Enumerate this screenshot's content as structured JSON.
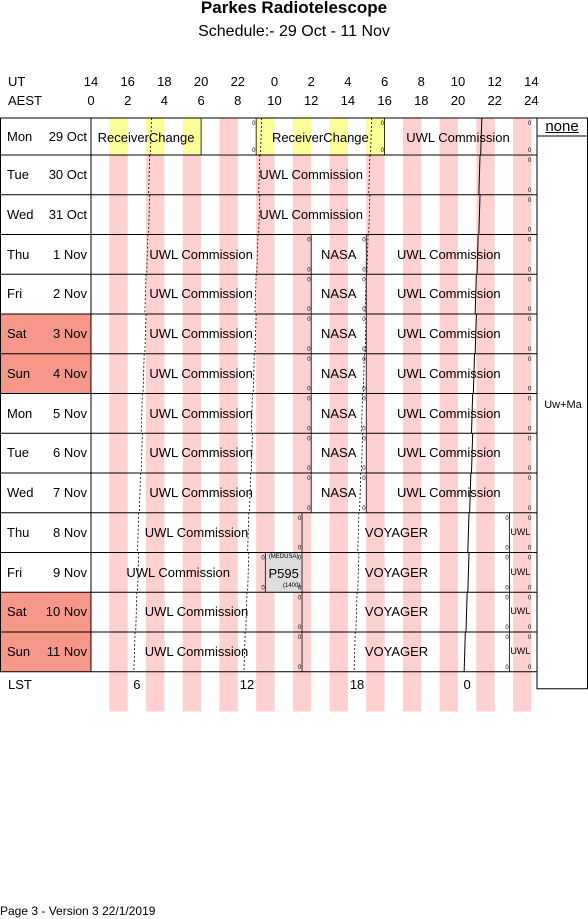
{
  "title": "Parkes Radiotelescope",
  "subtitle": "Schedule:- 29 Oct - 11 Nov",
  "header": {
    "ut_label": "UT",
    "aest_label": "AEST",
    "ut_ticks": [
      "14",
      "16",
      "18",
      "20",
      "22",
      "0",
      "2",
      "4",
      "6",
      "8",
      "10",
      "12",
      "14"
    ],
    "aest_ticks": [
      "0",
      "2",
      "4",
      "6",
      "8",
      "10",
      "12",
      "14",
      "16",
      "18",
      "20",
      "22",
      "24"
    ]
  },
  "lst": {
    "label": "LST",
    "ticks": [
      {
        "label": "6",
        "hour": 2.5
      },
      {
        "label": "12",
        "hour": 8.5
      },
      {
        "label": "18",
        "hour": 14.5
      },
      {
        "label": "0",
        "hour": 20.5
      }
    ]
  },
  "right_column": {
    "top": "none",
    "middle": "Uw+Ma"
  },
  "colors": {
    "weekend": "#f6978a",
    "shade": "#ffd0d0",
    "receiver": "#ffff99",
    "grey": "#dddddd"
  },
  "rows": [
    {
      "day": "Mon",
      "date": "29 Oct",
      "weekend": false,
      "lst_zero": 21.3,
      "blocks": [
        {
          "start": 0,
          "end": 6,
          "text": "ReceiverChange",
          "style": "receiver"
        },
        {
          "start": 9,
          "end": 16,
          "text": "ReceiverChange",
          "style": "receiver"
        },
        {
          "start": 16,
          "end": 24,
          "text": "UWL Commission"
        }
      ]
    },
    {
      "day": "Tue",
      "date": "30 Oct",
      "weekend": false,
      "lst_zero": 21.2,
      "blocks": [
        {
          "start": 0,
          "end": 24,
          "text": "UWL Commission"
        }
      ]
    },
    {
      "day": "Wed",
      "date": "31 Oct",
      "weekend": false,
      "lst_zero": 21.2,
      "blocks": [
        {
          "start": 0,
          "end": 24,
          "text": "UWL Commission"
        }
      ]
    },
    {
      "day": "Thu",
      "date": "1 Nov",
      "weekend": false,
      "lst_zero": 21.1,
      "blocks": [
        {
          "start": 0,
          "end": 12,
          "text": "UWL Commission"
        },
        {
          "start": 12,
          "end": 15,
          "text": "NASA"
        },
        {
          "start": 15,
          "end": 24,
          "text": "UWL Commission"
        }
      ]
    },
    {
      "day": "Fri",
      "date": "2 Nov",
      "weekend": false,
      "lst_zero": 21.0,
      "blocks": [
        {
          "start": 0,
          "end": 12,
          "text": "UWL Commission"
        },
        {
          "start": 12,
          "end": 15,
          "text": "NASA"
        },
        {
          "start": 15,
          "end": 24,
          "text": "UWL Commission"
        }
      ]
    },
    {
      "day": "Sat",
      "date": "3 Nov",
      "weekend": true,
      "lst_zero": 21.0,
      "blocks": [
        {
          "start": 0,
          "end": 12,
          "text": "UWL Commission"
        },
        {
          "start": 12,
          "end": 15,
          "text": "NASA"
        },
        {
          "start": 15,
          "end": 24,
          "text": "UWL Commission"
        }
      ]
    },
    {
      "day": "Sun",
      "date": "4 Nov",
      "weekend": true,
      "lst_zero": 20.9,
      "blocks": [
        {
          "start": 0,
          "end": 12,
          "text": "UWL Commission"
        },
        {
          "start": 12,
          "end": 15,
          "text": "NASA"
        },
        {
          "start": 15,
          "end": 24,
          "text": "UWL Commission"
        }
      ]
    },
    {
      "day": "Mon",
      "date": "5 Nov",
      "weekend": false,
      "lst_zero": 20.8,
      "blocks": [
        {
          "start": 0,
          "end": 12,
          "text": "UWL Commission"
        },
        {
          "start": 12,
          "end": 15,
          "text": "NASA"
        },
        {
          "start": 15,
          "end": 24,
          "text": "UWL Commission"
        }
      ]
    },
    {
      "day": "Tue",
      "date": "6 Nov",
      "weekend": false,
      "lst_zero": 20.8,
      "blocks": [
        {
          "start": 0,
          "end": 12,
          "text": "UWL Commission"
        },
        {
          "start": 12,
          "end": 15,
          "text": "NASA"
        },
        {
          "start": 15,
          "end": 24,
          "text": "UWL Commission"
        }
      ]
    },
    {
      "day": "Wed",
      "date": "7 Nov",
      "weekend": false,
      "lst_zero": 20.7,
      "blocks": [
        {
          "start": 0,
          "end": 12,
          "text": "UWL Commission"
        },
        {
          "start": 12,
          "end": 15,
          "text": "NASA"
        },
        {
          "start": 15,
          "end": 24,
          "text": "UWL Commission"
        }
      ]
    },
    {
      "day": "Thu",
      "date": "8 Nov",
      "weekend": false,
      "lst_zero": 20.6,
      "blocks": [
        {
          "start": 0,
          "end": 11.5,
          "text": "UWL Commission"
        },
        {
          "start": 11.5,
          "end": 21.8,
          "text": "VOYAGER"
        },
        {
          "start": 22.8,
          "end": 24,
          "text": "UWL",
          "size": "small"
        }
      ]
    },
    {
      "day": "Fri",
      "date": "9 Nov",
      "weekend": false,
      "lst_zero": 20.6,
      "blocks": [
        {
          "start": 0,
          "end": 9.5,
          "text": "UWL Commission"
        },
        {
          "start": 9.5,
          "end": 11.5,
          "text": "P595",
          "style": "grey",
          "top": "(MEDUSA)",
          "bottom": "(1400)"
        },
        {
          "start": 11.5,
          "end": 21.8,
          "text": "VOYAGER"
        },
        {
          "start": 22.8,
          "end": 24,
          "text": "UWL",
          "size": "small"
        }
      ]
    },
    {
      "day": "Sat",
      "date": "10 Nov",
      "weekend": true,
      "lst_zero": 20.5,
      "blocks": [
        {
          "start": 0,
          "end": 11.5,
          "text": "UWL Commission"
        },
        {
          "start": 11.5,
          "end": 21.8,
          "text": "VOYAGER"
        },
        {
          "start": 22.8,
          "end": 24,
          "text": "UWL",
          "size": "small"
        }
      ]
    },
    {
      "day": "Sun",
      "date": "11 Nov",
      "weekend": true,
      "lst_zero": 20.4,
      "blocks": [
        {
          "start": 0,
          "end": 11.5,
          "text": "UWL Commission"
        },
        {
          "start": 11.5,
          "end": 21.8,
          "text": "VOYAGER"
        },
        {
          "start": 22.8,
          "end": 24,
          "text": "UWL",
          "size": "small"
        }
      ]
    }
  ],
  "footer": "Page 3 - Version 3  22/1/2019"
}
